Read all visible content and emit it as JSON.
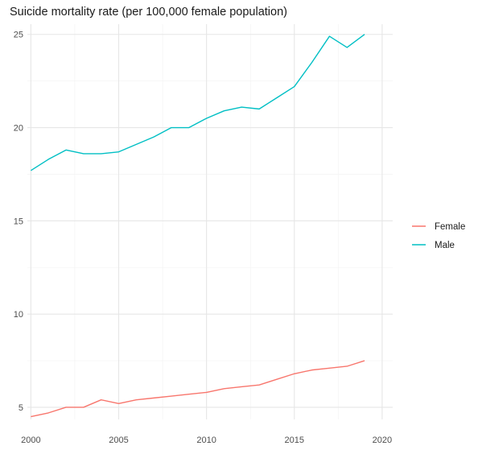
{
  "chart_data": {
    "type": "line",
    "title": "Suicide mortality rate (per 100,000 female population)",
    "xlabel": "",
    "ylabel": "",
    "x": [
      2000,
      2001,
      2002,
      2003,
      2004,
      2005,
      2006,
      2007,
      2008,
      2009,
      2010,
      2011,
      2012,
      2013,
      2014,
      2015,
      2016,
      2017,
      2018,
      2019
    ],
    "series": [
      {
        "name": "Female",
        "color": "#f8766d",
        "values": [
          4.5,
          4.7,
          5.0,
          5.0,
          5.4,
          5.2,
          5.4,
          5.5,
          5.6,
          5.7,
          5.8,
          6.0,
          6.1,
          6.2,
          6.5,
          6.8,
          7.0,
          7.1,
          7.2,
          7.5
        ]
      },
      {
        "name": "Male",
        "color": "#00bfc4",
        "values": [
          17.7,
          18.3,
          18.8,
          18.6,
          18.6,
          18.7,
          19.1,
          19.5,
          20.0,
          20.0,
          20.5,
          20.9,
          21.1,
          21.0,
          21.6,
          22.2,
          23.5,
          24.9,
          24.3,
          25.0
        ]
      }
    ],
    "xlim": [
      1999.8,
      2020.6
    ],
    "ylim": [
      4.35,
      25.55
    ],
    "x_ticks": [
      2000,
      2005,
      2010,
      2015,
      2020
    ],
    "y_ticks": [
      5,
      10,
      15,
      20,
      25
    ],
    "grid": true,
    "legend": "right"
  }
}
